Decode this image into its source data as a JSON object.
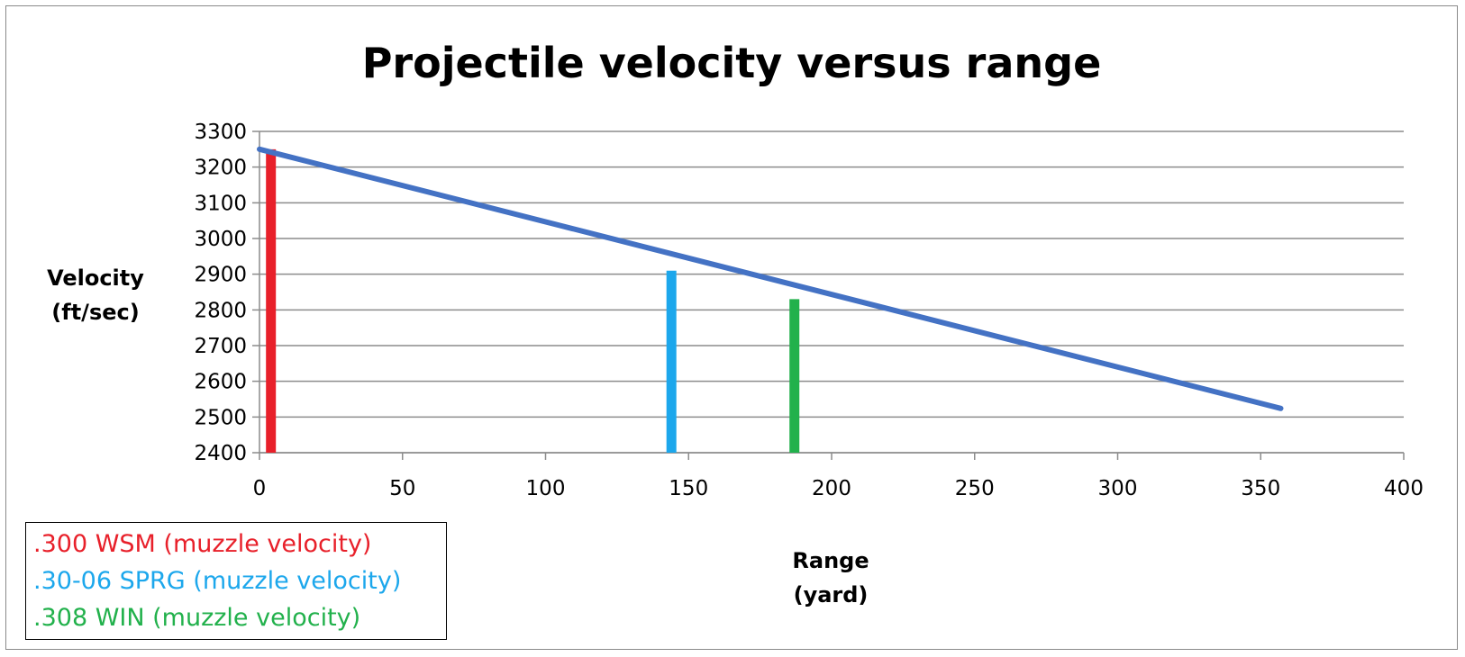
{
  "chart_data": {
    "type": "line",
    "title": "Projectile velocity versus range",
    "xlabel_lines": [
      "Range",
      "(yard)"
    ],
    "ylabel_lines": [
      "Velocity",
      "(ft/sec)"
    ],
    "xlim": [
      0,
      400
    ],
    "ylim": [
      2400,
      3300
    ],
    "x_ticks": [
      0,
      50,
      100,
      150,
      200,
      250,
      300,
      350,
      400
    ],
    "y_ticks": [
      2400,
      2500,
      2600,
      2700,
      2800,
      2900,
      3000,
      3100,
      3200,
      3300
    ],
    "grid": "horizontal",
    "series": [
      {
        "name": "Projectile velocity",
        "color": "#4472c4",
        "points": [
          [
            0,
            3250
          ],
          [
            357,
            2524
          ]
        ]
      }
    ],
    "markers": [
      {
        "label": ".300 WSM (muzzle velocity)",
        "x": 4,
        "y": 3250,
        "color": "#e8202a"
      },
      {
        "label": ".30-06 SPRG (muzzle velocity)",
        "x": 144,
        "y": 2910,
        "color": "#1ca7ec"
      },
      {
        "label": ".308 WIN (muzzle velocity)",
        "x": 187,
        "y": 2830,
        "color": "#22b14c"
      }
    ],
    "legend_position": "bottom-left"
  }
}
